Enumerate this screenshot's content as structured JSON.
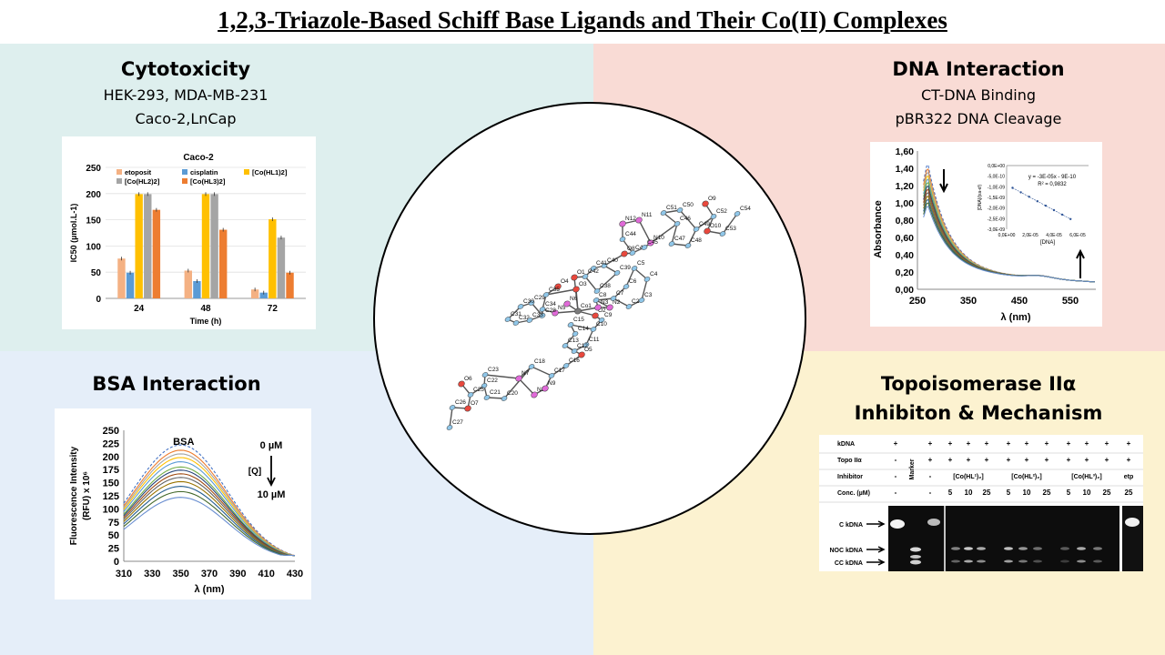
{
  "title": "1,2,3-Triazole-Based Schiff Base Ligands and Their Co(II)  Complexes",
  "sections": {
    "cytotoxicity": {
      "title": "Cytotoxicity",
      "line1": "HEK-293, MDA-MB-231",
      "line2": "Caco-2,LnCap"
    },
    "dna": {
      "title": "DNA Interaction",
      "line1": "CT-DNA Binding",
      "line2": "pBR322 DNA Cleavage"
    },
    "bsa": {
      "title": "BSA Interaction"
    },
    "topo": {
      "title": "Topoisomerase IIα",
      "line2": "Inhibiton & Mechanism"
    }
  },
  "colors": {
    "cyto_bg": "#deefee",
    "dna_bg": "#f9dbd5",
    "bsa_bg": "#e5eef9",
    "topo_bg": "#fcf2d0",
    "atom_c": "#8fc6e8",
    "atom_o": "#e8483d",
    "atom_n": "#e06ad8"
  },
  "molecule": {
    "atoms_c": [
      "C2",
      "C3",
      "C4",
      "C5",
      "C6",
      "C7",
      "C8",
      "C9",
      "C10",
      "C11",
      "C12",
      "C13",
      "C14",
      "C15",
      "C16",
      "C17",
      "C18",
      "C20",
      "C21",
      "C22",
      "C23",
      "C25",
      "C26",
      "C27",
      "C28",
      "C29",
      "C30",
      "C31",
      "C32",
      "C33",
      "C34",
      "C35",
      "C38",
      "C39",
      "C40",
      "C41",
      "C42",
      "C43",
      "C44",
      "C45",
      "C46",
      "C47",
      "C48",
      "C49",
      "C50",
      "C51",
      "C52",
      "C53",
      "C54"
    ],
    "atoms_o": [
      "O1",
      "O2",
      "O3",
      "O4",
      "O5",
      "O6",
      "O7",
      "O8",
      "O9",
      "O10"
    ],
    "atoms_n": [
      "N2",
      "N3",
      "N5",
      "N6",
      "N7",
      "N8",
      "N9",
      "N10",
      "N11",
      "N12"
    ],
    "metal": "Co1"
  },
  "chart_data": [
    {
      "type": "bar",
      "title": "Caco-2",
      "xlabel": "Time (h)",
      "ylabel": "IC50 (µmol.L-1)",
      "ylim": [
        0,
        250
      ],
      "yticks": [
        0,
        50,
        100,
        150,
        200,
        250
      ],
      "categories": [
        "24",
        "48",
        "72"
      ],
      "legend": "top",
      "series": [
        {
          "name": "etoposit",
          "color": "#f4b183",
          "values": [
            76,
            53,
            17
          ]
        },
        {
          "name": "cisplatin",
          "color": "#5b9bd5",
          "values": [
            49,
            33,
            11
          ]
        },
        {
          "name": "[Co(HL1)2]",
          "color": "#ffc000",
          "values": [
            199,
            199,
            151
          ]
        },
        {
          "name": "[Co(HL2)2]",
          "color": "#a5a5a5",
          "values": [
            199,
            199,
            116
          ]
        },
        {
          "name": "[Co(HL3)2]",
          "color": "#ed7d31",
          "values": [
            169,
            131,
            49
          ]
        }
      ]
    },
    {
      "type": "line",
      "title": "",
      "xlabel": "λ (nm)",
      "ylabel": "Absorbance",
      "xlim": [
        250,
        600
      ],
      "ylim": [
        0,
        1.6
      ],
      "xticks": [
        "250",
        "350",
        "450",
        "550"
      ],
      "yticks": [
        "0,00",
        "0,20",
        "0,40",
        "0,60",
        "0,80",
        "1,00",
        "1,20",
        "1,40",
        "1,60"
      ],
      "series_peaks": [
        1.47,
        1.42,
        1.38,
        1.34,
        1.3,
        1.26,
        1.22,
        1.18,
        1.14,
        1.1,
        1.06,
        1.02,
        0.98
      ],
      "inset": {
        "xlabel": "[DNA]",
        "ylabel": "[DNA]/(εa-εf)",
        "xticks": [
          "0,0E+00",
          "2,0E-05",
          "4,0E-05",
          "6,0E-05"
        ],
        "yticks": [
          "0,0E+00",
          "-5,0E-10",
          "-1,0E-09",
          "-1,5E-09",
          "-2,0E-09",
          "-2,5E-09",
          "-3,0E-09"
        ],
        "equation": "y = -3E-05x - 9E-10",
        "r2": "R² = 0,9832",
        "x": [
          5e-06,
          1.2e-05,
          1.9e-05,
          2.6e-05,
          3.3e-05,
          4e-05,
          4.7e-05,
          5.4e-05
        ],
        "y": [
          -1.05e-09,
          -1.26e-09,
          -1.47e-09,
          -1.68e-09,
          -1.89e-09,
          -2.1e-09,
          -2.31e-09,
          -2.52e-09
        ]
      }
    },
    {
      "type": "line",
      "title": "BSA",
      "xlabel": "λ (nm)",
      "ylabel": "Fluorescence Intensity (RFU) x 10⁶",
      "xlim": [
        310,
        430
      ],
      "ylim": [
        0,
        250
      ],
      "xticks": [
        "310",
        "330",
        "350",
        "370",
        "390",
        "410",
        "430"
      ],
      "yticks": [
        "0",
        "25",
        "50",
        "75",
        "100",
        "125",
        "150",
        "175",
        "200",
        "225",
        "250"
      ],
      "annotations": [
        "0 µM",
        "[Q]",
        "10 µM"
      ],
      "series_peaks": [
        222,
        212,
        205,
        198,
        190,
        180,
        174,
        167,
        160,
        152,
        143,
        133,
        122
      ]
    }
  ],
  "gel": {
    "row_labels": [
      "kDNA",
      "Topo IIα",
      "Inhibitor",
      "Conc. (µM)"
    ],
    "lane_kdna": [
      "+",
      "+",
      "+",
      "+",
      "+",
      "+",
      "+",
      "+",
      "+",
      "+",
      "+",
      "+",
      "+"
    ],
    "lane_topo": [
      "-",
      "+",
      "+",
      "+",
      "+",
      "+",
      "+",
      "+",
      "+",
      "+",
      "+",
      "+",
      "+"
    ],
    "lane_inhibitor": [
      "-",
      "-"
    ],
    "marker": "Marker",
    "groups": [
      "[Co(HL¹)₂]",
      "[Co(HL²)₂]",
      "[Co(HL³)₂]"
    ],
    "etp": "etp",
    "conc": [
      "-",
      "-",
      "5",
      "10",
      "25",
      "5",
      "10",
      "25",
      "5",
      "10",
      "25",
      "25"
    ],
    "band_labels": [
      "C kDNA",
      "NOC kDNA",
      "CC kDNA"
    ]
  }
}
